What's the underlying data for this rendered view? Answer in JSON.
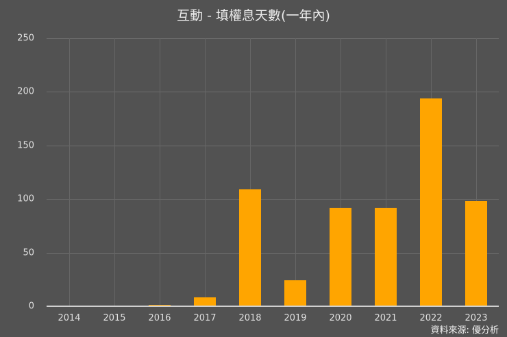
{
  "chart_data": {
    "type": "bar",
    "title": "互動 - 填權息天數(一年內)",
    "xlabel": "",
    "ylabel": "",
    "categories": [
      "2014",
      "2015",
      "2016",
      "2017",
      "2018",
      "2019",
      "2020",
      "2021",
      "2022",
      "2023"
    ],
    "values": [
      0,
      0,
      1,
      8,
      109,
      24,
      92,
      92,
      194,
      98
    ],
    "ylim": [
      0,
      250
    ],
    "yticks": [
      "0",
      "50",
      "100",
      "150",
      "200",
      "250"
    ],
    "grid": true,
    "bar_color": "#ffa500",
    "background": "#525252",
    "source": "資料來源: 優分析"
  }
}
